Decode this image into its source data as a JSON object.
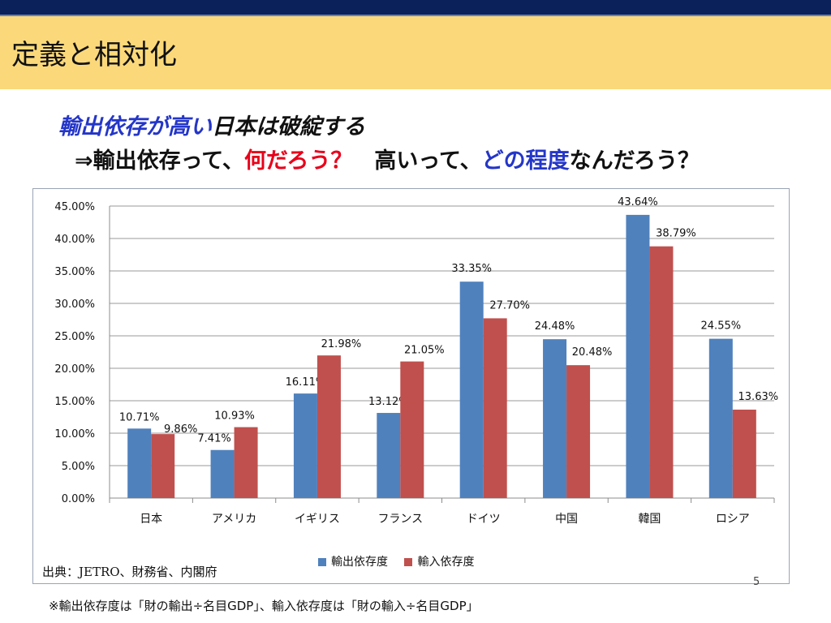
{
  "slide": {
    "title": "定義と相対化",
    "subtitle1_highlight": "輸出依存が高い",
    "subtitle1_rest": "日本は破綻する",
    "subtitle2_prefix": "⇒輸出依存って、",
    "subtitle2_red": "何だろう？",
    "subtitle2_middle": "　高いって、",
    "subtitle2_blue": "どの程度",
    "subtitle2_suffix": "なんだろう？",
    "source": "出典：JETRO、財務省、内閣府",
    "page_number": "5",
    "footnote": "※輸出依存度は「財の輸出÷名目GDP」、輸入依存度は「財の輸入÷名目GDP」"
  },
  "colors": {
    "export": "#4f81bd",
    "import": "#c0504d",
    "title_bar": "#fbd97a",
    "top_stripe": "#0b2159"
  },
  "chart_data": {
    "type": "bar",
    "categories": [
      "日本",
      "アメリカ",
      "イギリス",
      "フランス",
      "ドイツ",
      "中国",
      "韓国",
      "ロシア"
    ],
    "series": [
      {
        "name": "輸出依存度",
        "values": [
          10.71,
          7.41,
          16.11,
          13.12,
          33.35,
          24.48,
          43.64,
          24.55
        ]
      },
      {
        "name": "輸入依存度",
        "values": [
          9.86,
          10.93,
          21.98,
          21.05,
          27.7,
          20.48,
          38.79,
          13.63
        ]
      }
    ],
    "data_labels_export": [
      "10.71%",
      "7.41%",
      "16.11%",
      "13.12%",
      "33.35%",
      "24.48%",
      "43.64%",
      "24.55%"
    ],
    "data_labels_import": [
      "9.86%",
      "10.93%",
      "21.98%",
      "21.05%",
      "27.70%",
      "20.48%",
      "38.79%",
      "13.63%"
    ],
    "y_ticks": [
      "0.00%",
      "5.00%",
      "10.00%",
      "15.00%",
      "20.00%",
      "25.00%",
      "30.00%",
      "35.00%",
      "40.00%",
      "45.00%"
    ],
    "ylim": [
      0,
      45
    ],
    "title": "",
    "xlabel": "",
    "ylabel": "",
    "grid": true,
    "legend_position": "bottom"
  }
}
